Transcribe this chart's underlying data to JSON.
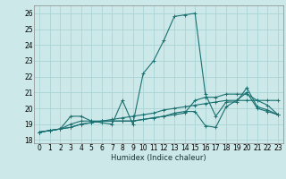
{
  "title": "",
  "xlabel": "Humidex (Indice chaleur)",
  "ylabel": "",
  "xlim": [
    -0.5,
    23.5
  ],
  "ylim": [
    17.8,
    26.5
  ],
  "yticks": [
    18,
    19,
    20,
    21,
    22,
    23,
    24,
    25,
    26
  ],
  "xticks": [
    0,
    1,
    2,
    3,
    4,
    5,
    6,
    7,
    8,
    9,
    10,
    11,
    12,
    13,
    14,
    15,
    16,
    17,
    18,
    19,
    20,
    21,
    22,
    23
  ],
  "bg_color": "#cce8e8",
  "grid_color": "#aad4d4",
  "line_color": "#1a7070",
  "series": [
    [
      18.5,
      18.6,
      18.7,
      19.5,
      19.5,
      19.2,
      19.1,
      19.0,
      20.5,
      19.0,
      22.2,
      23.0,
      24.3,
      25.8,
      25.9,
      26.0,
      20.9,
      19.5,
      20.4,
      20.4,
      21.3,
      20.1,
      19.9,
      19.6
    ],
    [
      18.5,
      18.6,
      18.7,
      18.8,
      19.0,
      19.1,
      19.2,
      19.3,
      19.4,
      19.5,
      19.6,
      19.7,
      19.9,
      20.0,
      20.1,
      20.2,
      20.3,
      20.4,
      20.5,
      20.5,
      20.5,
      20.5,
      20.5,
      20.5
    ],
    [
      18.5,
      18.6,
      18.7,
      19.0,
      19.2,
      19.2,
      19.2,
      19.2,
      19.2,
      19.2,
      19.3,
      19.4,
      19.5,
      19.6,
      19.7,
      20.5,
      20.7,
      20.7,
      20.9,
      20.9,
      20.9,
      20.5,
      20.2,
      19.6
    ],
    [
      18.5,
      18.6,
      18.7,
      18.8,
      19.0,
      19.1,
      19.2,
      19.2,
      19.2,
      19.2,
      19.3,
      19.4,
      19.5,
      19.7,
      19.8,
      19.8,
      18.9,
      18.8,
      20.1,
      20.5,
      21.0,
      20.0,
      19.8,
      19.6
    ]
  ]
}
